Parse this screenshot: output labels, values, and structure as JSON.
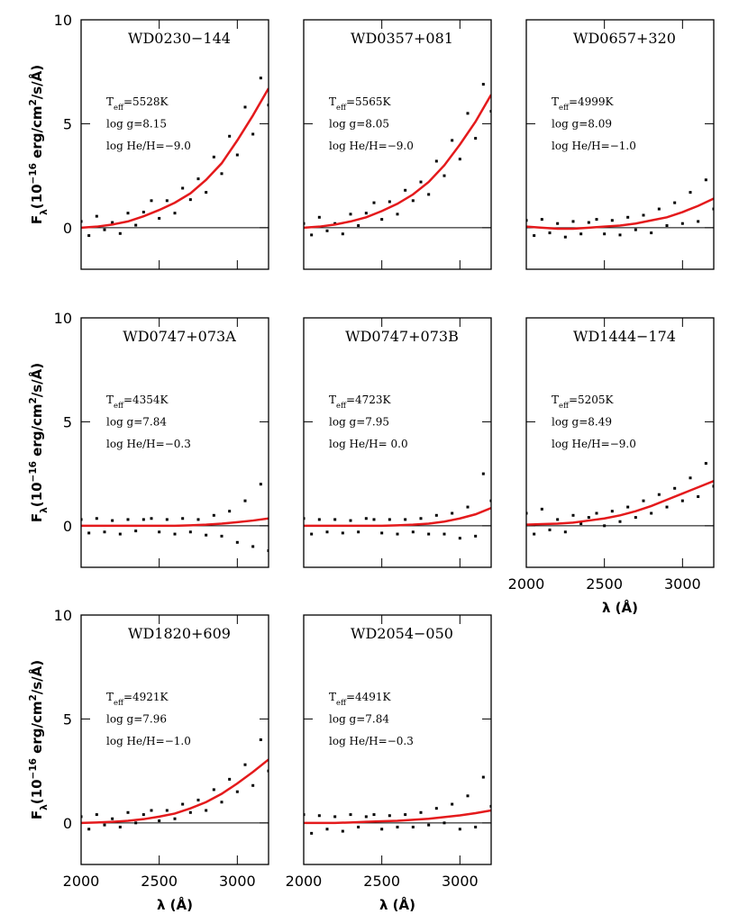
{
  "chart_data": [
    {
      "type": "scatter",
      "title": "WD0230−144",
      "annotations": [
        [
          {
            "text": "T"
          },
          {
            "text": "eff",
            "shift": "sub"
          },
          {
            "text": "=5528K"
          }
        ],
        [
          {
            "text": "log g=8.15"
          }
        ],
        [
          {
            "text": "log He/H=−9.0"
          }
        ]
      ],
      "ylabel": [
        {
          "text": "F"
        },
        {
          "text": "λ",
          "shift": "sub"
        },
        {
          "text": "(10"
        },
        {
          "text": "−16",
          "shift": "super"
        },
        {
          "text": " erg/cm"
        },
        {
          "text": "2",
          "shift": "super"
        },
        {
          "text": "/s/Å)"
        }
      ],
      "x": [
        2000,
        2050,
        2100,
        2150,
        2200,
        2250,
        2300,
        2350,
        2400,
        2450,
        2500,
        2550,
        2600,
        2650,
        2700,
        2750,
        2800,
        2850,
        2900,
        2950,
        3000,
        3050,
        3100,
        3150,
        3200
      ],
      "values": [
        0.3,
        -0.38,
        0.55,
        -0.1,
        0.25,
        -0.28,
        0.7,
        0.12,
        0.75,
        1.3,
        0.45,
        1.3,
        0.7,
        1.9,
        1.35,
        2.35,
        1.7,
        3.4,
        2.6,
        4.4,
        3.5,
        5.8,
        4.5,
        7.2,
        5.9
      ],
      "color": "#000000",
      "model": {
        "x": [
          2000,
          2100,
          2200,
          2300,
          2400,
          2500,
          2600,
          2700,
          2800,
          2900,
          3000,
          3100,
          3200
        ],
        "values": [
          0,
          0.05,
          0.15,
          0.3,
          0.55,
          0.85,
          1.2,
          1.65,
          2.3,
          3.1,
          4.2,
          5.4,
          6.7
        ],
        "color": "#e41a1c"
      },
      "hline": 0,
      "xlim": [
        2000,
        3200
      ],
      "ylim": [
        -2,
        10
      ],
      "xticks": [
        2000,
        2500,
        3000
      ],
      "yticks": [
        0,
        5,
        10
      ]
    },
    {
      "type": "scatter",
      "title": "WD0357+081",
      "annotations": [
        [
          {
            "text": "T"
          },
          {
            "text": "eff",
            "shift": "sub"
          },
          {
            "text": "=5565K"
          }
        ],
        [
          {
            "text": "log g=8.05"
          }
        ],
        [
          {
            "text": "log He/H=−9.0"
          }
        ]
      ],
      "x": [
        2000,
        2050,
        2100,
        2150,
        2200,
        2250,
        2300,
        2350,
        2400,
        2450,
        2500,
        2550,
        2600,
        2650,
        2700,
        2750,
        2800,
        2850,
        2900,
        2950,
        3000,
        3050,
        3100,
        3150,
        3200
      ],
      "values": [
        0.2,
        -0.35,
        0.5,
        -0.15,
        0.2,
        -0.3,
        0.65,
        0.1,
        0.7,
        1.2,
        0.4,
        1.25,
        0.65,
        1.8,
        1.3,
        2.2,
        1.6,
        3.2,
        2.5,
        4.2,
        3.3,
        5.5,
        4.3,
        6.9,
        5.6
      ],
      "color": "#000000",
      "model": {
        "x": [
          2000,
          2100,
          2200,
          2300,
          2400,
          2500,
          2600,
          2700,
          2800,
          2900,
          3000,
          3100,
          3200
        ],
        "values": [
          0,
          0.05,
          0.15,
          0.3,
          0.5,
          0.8,
          1.15,
          1.6,
          2.2,
          3.0,
          4.0,
          5.1,
          6.4
        ],
        "color": "#e41a1c"
      },
      "hline": 0,
      "xlim": [
        2000,
        3200
      ],
      "ylim": [
        -2,
        10
      ],
      "xticks": [
        2000,
        2500,
        3000
      ],
      "yticks": [
        0,
        5,
        10
      ]
    },
    {
      "type": "scatter",
      "title": "WD0657+320",
      "annotations": [
        [
          {
            "text": "T"
          },
          {
            "text": "eff",
            "shift": "sub"
          },
          {
            "text": "=4999K"
          }
        ],
        [
          {
            "text": "log g=8.09"
          }
        ],
        [
          {
            "text": "log He/H=−1.0"
          }
        ]
      ],
      "x": [
        2000,
        2050,
        2100,
        2150,
        2200,
        2250,
        2300,
        2350,
        2400,
        2450,
        2500,
        2550,
        2600,
        2650,
        2700,
        2750,
        2800,
        2850,
        2900,
        2950,
        3000,
        3050,
        3100,
        3150,
        3200
      ],
      "values": [
        0.35,
        -0.38,
        0.4,
        -0.25,
        0.2,
        -0.45,
        0.3,
        -0.3,
        0.25,
        0.4,
        -0.3,
        0.35,
        -0.35,
        0.5,
        -0.1,
        0.6,
        -0.25,
        0.9,
        0.1,
        1.2,
        0.2,
        1.7,
        0.3,
        2.3,
        0.9
      ],
      "color": "#000000",
      "model": {
        "x": [
          2000,
          2100,
          2200,
          2300,
          2400,
          2500,
          2600,
          2700,
          2800,
          2900,
          3000,
          3100,
          3200
        ],
        "values": [
          0.05,
          0,
          -0.05,
          -0.05,
          0,
          0.05,
          0.1,
          0.2,
          0.35,
          0.5,
          0.75,
          1.05,
          1.4
        ],
        "color": "#e41a1c"
      },
      "hline": 0,
      "xlim": [
        2000,
        3200
      ],
      "ylim": [
        -2,
        10
      ],
      "xticks": [
        2000,
        2500,
        3000
      ],
      "yticks": [
        0,
        5,
        10
      ]
    },
    {
      "type": "scatter",
      "title": "WD0747+073A",
      "annotations": [
        [
          {
            "text": "T"
          },
          {
            "text": "eff",
            "shift": "sub"
          },
          {
            "text": "=4354K"
          }
        ],
        [
          {
            "text": "log g=7.84"
          }
        ],
        [
          {
            "text": "log He/H=−0.3"
          }
        ]
      ],
      "ylabel": [
        {
          "text": "F"
        },
        {
          "text": "λ",
          "shift": "sub"
        },
        {
          "text": "(10"
        },
        {
          "text": "−16",
          "shift": "super"
        },
        {
          "text": " erg/cm"
        },
        {
          "text": "2",
          "shift": "super"
        },
        {
          "text": "/s/Å)"
        }
      ],
      "x": [
        2000,
        2050,
        2100,
        2150,
        2200,
        2250,
        2300,
        2350,
        2400,
        2450,
        2500,
        2550,
        2600,
        2650,
        2700,
        2750,
        2800,
        2850,
        2900,
        2950,
        3000,
        3050,
        3100,
        3150,
        3200
      ],
      "values": [
        0.3,
        -0.35,
        0.35,
        -0.3,
        0.25,
        -0.4,
        0.3,
        -0.25,
        0.3,
        0.35,
        -0.3,
        0.3,
        -0.4,
        0.35,
        -0.3,
        0.3,
        -0.45,
        0.5,
        -0.5,
        0.7,
        -0.8,
        1.2,
        -1.0,
        2.0,
        -1.2
      ],
      "color": "#000000",
      "model": {
        "x": [
          2000,
          2100,
          2200,
          2300,
          2400,
          2500,
          2600,
          2700,
          2800,
          2900,
          3000,
          3100,
          3200
        ],
        "values": [
          0,
          0,
          0,
          0,
          0,
          0,
          0,
          0.02,
          0.05,
          0.1,
          0.17,
          0.25,
          0.35
        ],
        "color": "#e41a1c"
      },
      "hline": 0,
      "xlim": [
        2000,
        3200
      ],
      "ylim": [
        -2,
        10
      ],
      "xticks": [
        2000,
        2500,
        3000
      ],
      "yticks": [
        0,
        5,
        10
      ]
    },
    {
      "type": "scatter",
      "title": "WD0747+073B",
      "annotations": [
        [
          {
            "text": "T"
          },
          {
            "text": "eff",
            "shift": "sub"
          },
          {
            "text": "=4723K"
          }
        ],
        [
          {
            "text": "log g=7.95"
          }
        ],
        [
          {
            "text": "log He/H= 0.0"
          }
        ]
      ],
      "x": [
        2000,
        2050,
        2100,
        2150,
        2200,
        2250,
        2300,
        2350,
        2400,
        2450,
        2500,
        2550,
        2600,
        2650,
        2700,
        2750,
        2800,
        2850,
        2900,
        2950,
        3000,
        3050,
        3100,
        3150,
        3200
      ],
      "values": [
        0.35,
        -0.4,
        0.3,
        -0.3,
        0.3,
        -0.35,
        0.25,
        -0.3,
        0.35,
        0.3,
        -0.35,
        0.3,
        -0.4,
        0.3,
        -0.3,
        0.35,
        -0.4,
        0.5,
        -0.4,
        0.6,
        -0.6,
        0.9,
        -0.5,
        2.5,
        1.2
      ],
      "color": "#000000",
      "model": {
        "x": [
          2000,
          2100,
          2200,
          2300,
          2400,
          2500,
          2600,
          2700,
          2800,
          2900,
          3000,
          3100,
          3200
        ],
        "values": [
          0,
          0,
          0,
          0,
          0,
          0,
          0.02,
          0.05,
          0.1,
          0.2,
          0.35,
          0.55,
          0.85
        ],
        "color": "#e41a1c"
      },
      "hline": 0,
      "xlim": [
        2000,
        3200
      ],
      "ylim": [
        -2,
        10
      ],
      "xticks": [
        2000,
        2500,
        3000
      ],
      "yticks": [
        0,
        5,
        10
      ]
    },
    {
      "type": "scatter",
      "title": "WD1444−174",
      "annotations": [
        [
          {
            "text": "T"
          },
          {
            "text": "eff",
            "shift": "sub"
          },
          {
            "text": "=5205K"
          }
        ],
        [
          {
            "text": "log g=8.49"
          }
        ],
        [
          {
            "text": "log He/H=−9.0"
          }
        ]
      ],
      "xlabel": "λ (Å)",
      "x": [
        2000,
        2050,
        2100,
        2150,
        2200,
        2250,
        2300,
        2350,
        2400,
        2450,
        2500,
        2550,
        2600,
        2650,
        2700,
        2750,
        2800,
        2850,
        2900,
        2950,
        3000,
        3050,
        3100,
        3150,
        3200
      ],
      "values": [
        0.6,
        -0.4,
        0.8,
        -0.2,
        0.3,
        -0.3,
        0.5,
        0.1,
        0.4,
        0.6,
        0.0,
        0.7,
        0.2,
        0.9,
        0.4,
        1.2,
        0.6,
        1.5,
        0.9,
        1.8,
        1.2,
        2.3,
        1.4,
        3.0,
        1.9
      ],
      "color": "#000000",
      "model": {
        "x": [
          2000,
          2100,
          2200,
          2300,
          2400,
          2500,
          2600,
          2700,
          2800,
          2900,
          3000,
          3100,
          3200
        ],
        "values": [
          0.05,
          0.08,
          0.1,
          0.15,
          0.25,
          0.35,
          0.5,
          0.7,
          0.95,
          1.25,
          1.55,
          1.85,
          2.15
        ],
        "color": "#e41a1c"
      },
      "hline": 0,
      "xlim": [
        2000,
        3200
      ],
      "ylim": [
        -2,
        10
      ],
      "xticks": [
        2000,
        2500,
        3000
      ],
      "yticks": [
        0,
        5,
        10
      ]
    },
    {
      "type": "scatter",
      "title": "WD1820+609",
      "annotations": [
        [
          {
            "text": "T"
          },
          {
            "text": "eff",
            "shift": "sub"
          },
          {
            "text": "=4921K"
          }
        ],
        [
          {
            "text": "log g=7.96"
          }
        ],
        [
          {
            "text": "log He/H=−1.0"
          }
        ]
      ],
      "ylabel": [
        {
          "text": "F"
        },
        {
          "text": "λ",
          "shift": "sub"
        },
        {
          "text": "(10"
        },
        {
          "text": "−16",
          "shift": "super"
        },
        {
          "text": " erg/cm"
        },
        {
          "text": "2",
          "shift": "super"
        },
        {
          "text": "/s/Å)"
        }
      ],
      "xlabel": "λ (Å)",
      "x": [
        2000,
        2050,
        2100,
        2150,
        2200,
        2250,
        2300,
        2350,
        2400,
        2450,
        2500,
        2550,
        2600,
        2650,
        2700,
        2750,
        2800,
        2850,
        2900,
        2950,
        3000,
        3050,
        3100,
        3150,
        3200
      ],
      "values": [
        0.3,
        -0.3,
        0.4,
        -0.1,
        0.2,
        -0.2,
        0.5,
        0.0,
        0.4,
        0.6,
        0.1,
        0.6,
        0.2,
        0.9,
        0.5,
        1.1,
        0.6,
        1.6,
        1.0,
        2.1,
        1.5,
        2.8,
        1.8,
        4.0,
        2.5
      ],
      "color": "#000000",
      "model": {
        "x": [
          2000,
          2100,
          2200,
          2300,
          2400,
          2500,
          2600,
          2700,
          2800,
          2900,
          3000,
          3100,
          3200
        ],
        "values": [
          0,
          0.02,
          0.05,
          0.1,
          0.18,
          0.3,
          0.45,
          0.7,
          1.0,
          1.4,
          1.9,
          2.45,
          3.05
        ],
        "color": "#e41a1c"
      },
      "hline": 0,
      "xlim": [
        2000,
        3200
      ],
      "ylim": [
        -2,
        10
      ],
      "xticks": [
        2000,
        2500,
        3000
      ],
      "yticks": [
        0,
        5,
        10
      ]
    },
    {
      "type": "scatter",
      "title": "WD2054−050",
      "annotations": [
        [
          {
            "text": "T"
          },
          {
            "text": "eff",
            "shift": "sub"
          },
          {
            "text": "=4491K"
          }
        ],
        [
          {
            "text": "log g=7.84"
          }
        ],
        [
          {
            "text": "log He/H=−0.3"
          }
        ]
      ],
      "xlabel": "λ (Å)",
      "x": [
        2000,
        2050,
        2100,
        2150,
        2200,
        2250,
        2300,
        2350,
        2400,
        2450,
        2500,
        2550,
        2600,
        2650,
        2700,
        2750,
        2800,
        2850,
        2900,
        2950,
        3000,
        3050,
        3100,
        3150,
        3200
      ],
      "values": [
        0.4,
        -0.5,
        0.35,
        -0.3,
        0.3,
        -0.4,
        0.4,
        -0.2,
        0.3,
        0.4,
        -0.3,
        0.35,
        -0.2,
        0.4,
        -0.2,
        0.5,
        -0.1,
        0.7,
        0.0,
        0.9,
        -0.3,
        1.3,
        -0.2,
        2.2,
        0.8
      ],
      "color": "#000000",
      "model": {
        "x": [
          2000,
          2100,
          2200,
          2300,
          2400,
          2500,
          2600,
          2700,
          2800,
          2900,
          3000,
          3100,
          3200
        ],
        "values": [
          0,
          0,
          0,
          0.02,
          0.05,
          0.08,
          0.1,
          0.15,
          0.2,
          0.28,
          0.36,
          0.47,
          0.6
        ],
        "color": "#e41a1c"
      },
      "hline": 0,
      "xlim": [
        2000,
        3200
      ],
      "ylim": [
        -2,
        10
      ],
      "xticks": [
        2000,
        2500,
        3000
      ],
      "yticks": [
        0,
        5,
        10
      ]
    }
  ]
}
